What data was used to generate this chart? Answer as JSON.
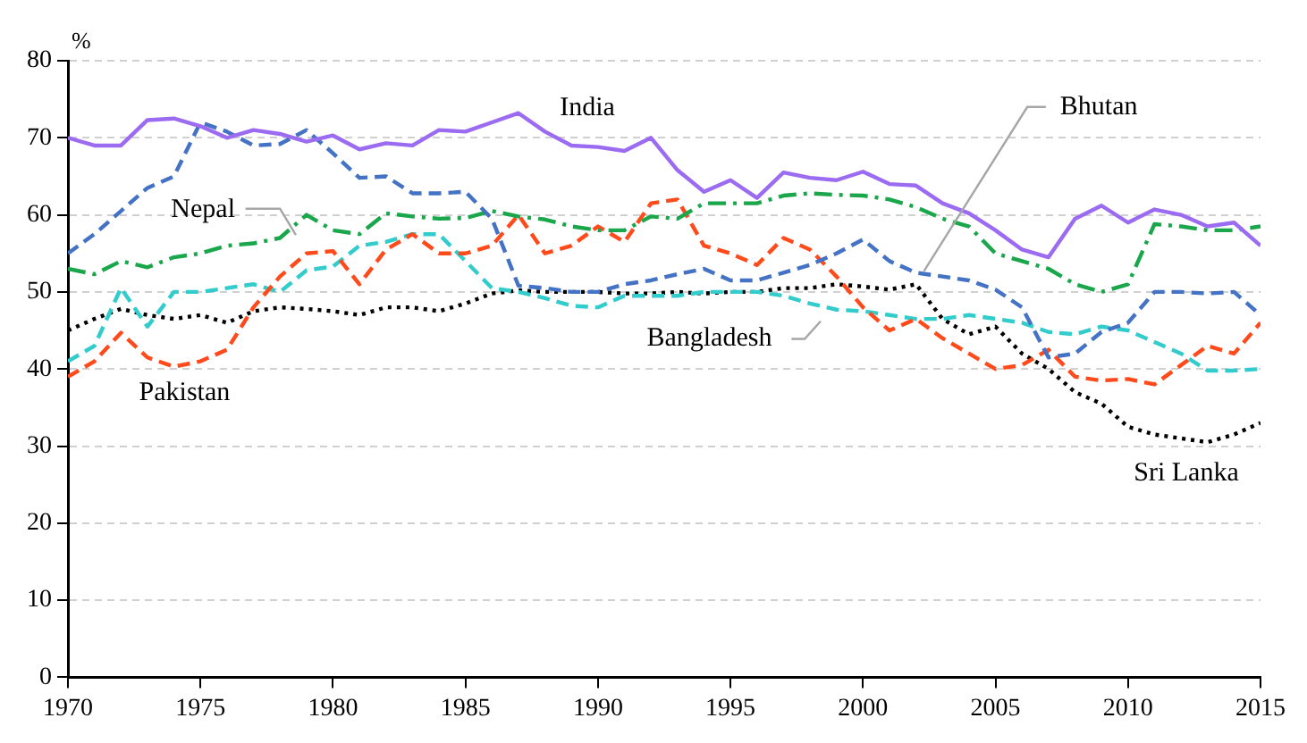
{
  "chart_data": {
    "type": "line",
    "ylabel": "%",
    "x": [
      1970,
      1971,
      1972,
      1973,
      1974,
      1975,
      1976,
      1977,
      1978,
      1979,
      1980,
      1981,
      1982,
      1983,
      1984,
      1985,
      1986,
      1987,
      1988,
      1989,
      1990,
      1991,
      1992,
      1993,
      1994,
      1995,
      1996,
      1997,
      1998,
      1999,
      2000,
      2001,
      2002,
      2003,
      2004,
      2005,
      2006,
      2007,
      2008,
      2009,
      2010,
      2011,
      2012,
      2013,
      2014,
      2015
    ],
    "series": [
      {
        "name": "India",
        "color": "#9b6bf2",
        "line_style": "solid",
        "values": [
          70,
          69,
          69,
          72.3,
          72.5,
          71.5,
          70,
          71,
          70.5,
          69.5,
          70.3,
          68.5,
          69.3,
          69,
          71,
          70.8,
          72,
          73.2,
          70.8,
          69,
          68.8,
          68.3,
          70,
          65.8,
          63,
          64.5,
          62.2,
          65.5,
          64.8,
          64.5,
          65.6,
          64,
          63.8,
          61.5,
          60.2,
          58,
          55.5,
          54.5,
          59.5,
          61.2,
          59,
          60.7,
          60,
          58.5,
          59,
          56
        ]
      },
      {
        "name": "Bhutan",
        "color": "#4472c4",
        "line_style": "dashed",
        "values": [
          55,
          57.5,
          60.5,
          63.5,
          65,
          72,
          70.8,
          69,
          69.2,
          71,
          68,
          64.8,
          65,
          62.8,
          62.8,
          63,
          59.5,
          50.8,
          50.5,
          50,
          50,
          51,
          51.5,
          52.3,
          53,
          51.5,
          51.5,
          52.5,
          53.5,
          55,
          56.8,
          54,
          52.5,
          52,
          51.5,
          50.3,
          48,
          41.5,
          42,
          44.8,
          46,
          50,
          50,
          49.8,
          50,
          47
        ]
      },
      {
        "name": "Nepal",
        "color": "#1aa64a",
        "line_style": "dashdot",
        "values": [
          53,
          52.3,
          54,
          53.2,
          54.5,
          55,
          56,
          56.3,
          57,
          60,
          58,
          57.5,
          60.2,
          59.8,
          59.5,
          59.6,
          60.5,
          59.8,
          59.4,
          58.5,
          58,
          58,
          59.8,
          59.5,
          61.5,
          61.5,
          61.5,
          62.5,
          62.8,
          62.6,
          62.5,
          62,
          61,
          59.5,
          58.5,
          55,
          54,
          53,
          51,
          50,
          51,
          58.8,
          58.5,
          58,
          58,
          58.5
        ]
      },
      {
        "name": "Pakistan",
        "color": "#ff4a1c",
        "line_style": "dashed",
        "values": [
          39,
          41,
          44.7,
          41.5,
          40.3,
          41,
          42.5,
          48,
          52,
          55,
          55.3,
          51,
          55.5,
          57.5,
          55,
          55,
          56,
          60,
          55,
          56,
          58.5,
          56.5,
          61.5,
          62,
          56,
          55,
          53.5,
          57,
          55.5,
          52,
          48,
          45,
          46.5,
          44,
          42,
          40,
          40.5,
          42.5,
          39,
          38.5,
          38.7,
          38,
          40.5,
          43,
          42,
          46
        ]
      },
      {
        "name": "Bangladesh",
        "color": "#33cccc",
        "line_style": "dashed",
        "values": [
          41,
          43,
          50.5,
          45.5,
          50,
          50,
          50.5,
          51,
          50,
          52.8,
          53.3,
          56,
          56.5,
          57.5,
          57.5,
          54,
          50.5,
          50,
          49.2,
          48.2,
          48,
          49.5,
          49.5,
          49.5,
          50,
          50,
          50,
          49.5,
          48.5,
          47.7,
          47.5,
          47,
          46.5,
          46.5,
          47,
          46.5,
          46,
          44.8,
          44.5,
          45.5,
          45,
          43.5,
          42,
          39.8,
          39.8,
          40
        ]
      },
      {
        "name": "Sri Lanka",
        "color": "#000000",
        "line_style": "dotted",
        "values": [
          45,
          46.5,
          47.8,
          47,
          46.5,
          47,
          46,
          47.5,
          48,
          47.8,
          47.5,
          47,
          48,
          48,
          47.5,
          48.5,
          49.8,
          50.2,
          50,
          50,
          50,
          49.8,
          49.8,
          50,
          49.8,
          50,
          50,
          50.5,
          50.5,
          51,
          50.7,
          50.3,
          51,
          46.5,
          44.5,
          45.5,
          42,
          40,
          37,
          35.5,
          32.5,
          31.5,
          31,
          30.5,
          31.5,
          33
        ]
      }
    ],
    "xlim": [
      1970,
      2015
    ],
    "xticks": [
      1970,
      1975,
      1980,
      1985,
      1990,
      1995,
      2000,
      2005,
      2010,
      2015
    ],
    "ylim": [
      0,
      80
    ],
    "yticks": [
      0,
      10,
      20,
      30,
      40,
      50,
      60,
      70,
      80
    ],
    "grid": "y",
    "legend": false,
    "marker": "none"
  }
}
